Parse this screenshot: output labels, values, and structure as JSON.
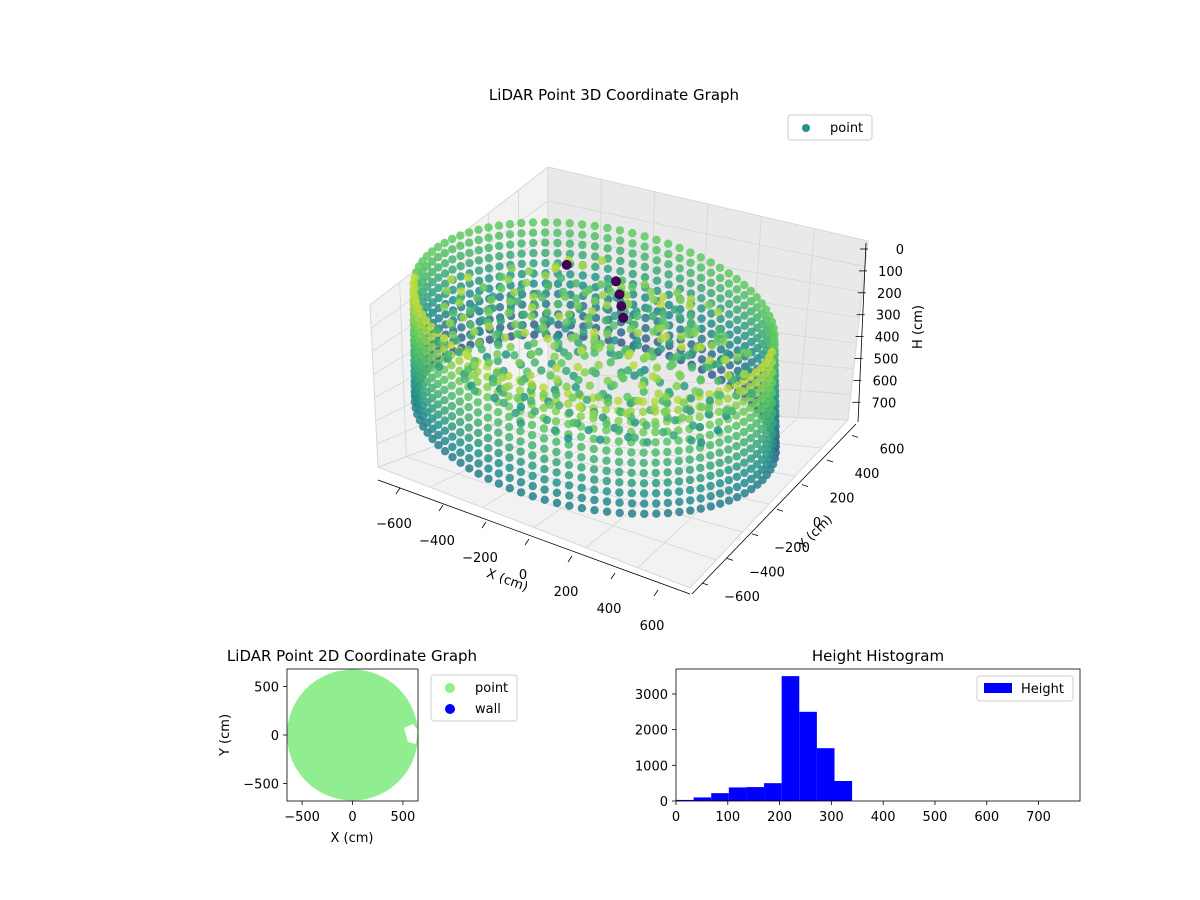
{
  "chart_data": [
    {
      "type": "scatter",
      "title": "LiDAR Point 3D Coordinate Graph",
      "xlabel": "X (cm)",
      "ylabel": "Y (cm)",
      "zlabel": "H (cm)",
      "xlim": [
        -700,
        700
      ],
      "ylim": [
        -700,
        700
      ],
      "zlim": [
        0,
        750
      ],
      "z_inverted": true,
      "x_ticks": [
        "−600",
        "−400",
        "−200",
        "0",
        "200",
        "400",
        "600"
      ],
      "y_ticks": [
        "−600",
        "−400",
        "−200",
        "0",
        "200",
        "400",
        "600"
      ],
      "z_ticks": [
        "0",
        "100",
        "200",
        "300",
        "400",
        "500",
        "600",
        "700"
      ],
      "legend": {
        "placement": "top-right",
        "entries": [
          {
            "label": "point",
            "color": "#21918c"
          }
        ]
      },
      "colormap": "viridis",
      "grid": true,
      "series": [
        {
          "name": "point",
          "shape": "cylindrical wall",
          "radius": 650,
          "z_range": [
            200,
            650
          ]
        }
      ]
    },
    {
      "type": "scatter",
      "title": "LiDAR Point 2D Coordinate Graph",
      "xlabel": "X (cm)",
      "ylabel": "Y (cm)",
      "xlim": [
        -650,
        650
      ],
      "ylim": [
        -680,
        680
      ],
      "x_ticks": [
        "−500",
        "0",
        "500"
      ],
      "y_ticks": [
        "−500",
        "0",
        "500"
      ],
      "legend": {
        "placement": "outside-right",
        "entries": [
          {
            "label": "point",
            "color": "#90ee90"
          },
          {
            "label": "wall",
            "color": "#0000ff"
          }
        ]
      },
      "series": [
        {
          "name": "point",
          "shape": "disk",
          "center": [
            0,
            0
          ],
          "radius": 650
        }
      ]
    },
    {
      "type": "bar",
      "title": "Height Histogram",
      "xlim": [
        0,
        780
      ],
      "ylim": [
        0,
        3700
      ],
      "x_ticks": [
        "0",
        "100",
        "200",
        "300",
        "400",
        "500",
        "600",
        "700"
      ],
      "y_ticks": [
        "0",
        "1000",
        "2000",
        "3000"
      ],
      "legend": {
        "placement": "top-right",
        "entries": [
          {
            "label": "Height",
            "color": "#0000ff"
          }
        ]
      },
      "bin_width": 34,
      "bins": [
        {
          "x": 0,
          "value": 30
        },
        {
          "x": 34,
          "value": 100
        },
        {
          "x": 68,
          "value": 220
        },
        {
          "x": 102,
          "value": 380
        },
        {
          "x": 136,
          "value": 390
        },
        {
          "x": 170,
          "value": 500
        },
        {
          "x": 204,
          "value": 3500
        },
        {
          "x": 238,
          "value": 2500
        },
        {
          "x": 272,
          "value": 1480
        },
        {
          "x": 306,
          "value": 560
        }
      ]
    }
  ]
}
